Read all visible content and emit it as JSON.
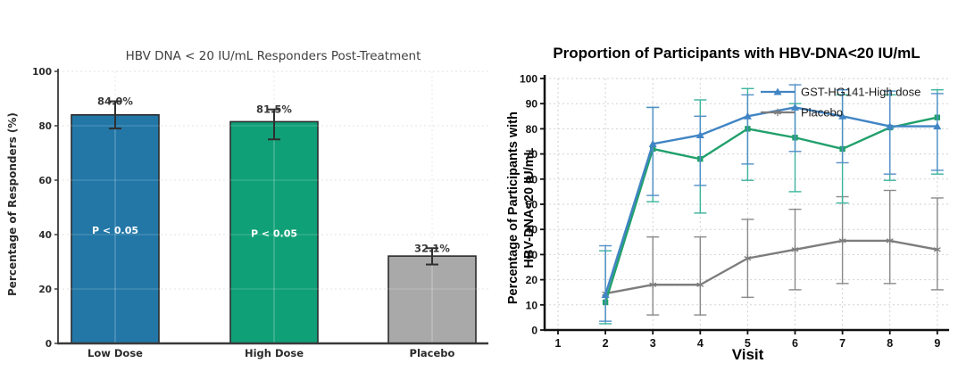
{
  "figure": {
    "background": "#ffffff"
  },
  "chart_data": [
    {
      "type": "bar",
      "title": "HBV DNA < 20 IU/mL Responders Post-Treatment",
      "ylabel": "Percentage of Responders (%)",
      "xlabel": "",
      "categories": [
        "Low Dose",
        "High Dose",
        "Placebo"
      ],
      "values": [
        84.0,
        81.5,
        32.1
      ],
      "value_labels": [
        "84.0%",
        "81.5%",
        "32.1%"
      ],
      "bar_annotations": [
        "P < 0.05",
        "P < 0.05",
        ""
      ],
      "error_low": [
        79,
        75,
        29
      ],
      "error_high": [
        89,
        86,
        35
      ],
      "bar_colors": [
        "#2277a7",
        "#10a077",
        "#a9a9a9"
      ],
      "bar_edge_color": "#2b2b2b",
      "error_color": "#2f2f2f",
      "ylim": [
        0,
        100
      ],
      "yticks": [
        0,
        20,
        40,
        60,
        80,
        100
      ],
      "grid": true,
      "grid_color": "#dcdcdc",
      "title_color": "#3f3f3f",
      "annotation_color": "#ffffff"
    },
    {
      "type": "line",
      "title": "Proportion of Participants with HBV-DNA<20 IU/mL",
      "xlabel": "Visit",
      "ylabel": "Percentage of Participants with HBV-DNA<20 IU/mL",
      "ylabel_lines": [
        "Percentage of Participants with",
        "HBV-DNA<20 IU/mL"
      ],
      "x": [
        2,
        3,
        4,
        5,
        6,
        7,
        8,
        9
      ],
      "xticks": [
        1,
        2,
        3,
        4,
        5,
        6,
        7,
        8,
        9
      ],
      "xlim": [
        1,
        9.25
      ],
      "ylim": [
        0,
        100
      ],
      "yticks": [
        0,
        10,
        20,
        30,
        40,
        50,
        60,
        70,
        80,
        90,
        100
      ],
      "grid": true,
      "grid_color": "#d2d2d2",
      "legend_position": "top-right",
      "legend_entries": [
        "GST-HG141-High dose",
        "Placebo"
      ],
      "series": [
        {
          "name": "Placebo",
          "in_legend": true,
          "color": "#7d7d7d",
          "error_color": "#8a8a8a",
          "marker": "star",
          "values": [
            14.5,
            18,
            18,
            28.5,
            32,
            35.5,
            35.5,
            32
          ],
          "error_low": [
            null,
            6,
            6,
            13,
            16,
            18.5,
            18.5,
            16
          ],
          "error_high": [
            null,
            37,
            37,
            44,
            48,
            53,
            55.5,
            52.5
          ]
        },
        {
          "name": "",
          "in_legend": false,
          "color": "#21a06c",
          "error_color": "#3cb49c",
          "marker": "square",
          "values": [
            11,
            72,
            68,
            80,
            76.5,
            72,
            80.5,
            84.5
          ],
          "error_low": [
            2.5,
            51,
            46.5,
            59.5,
            55,
            50.5,
            59.5,
            62
          ],
          "error_high": [
            31.5,
            88.5,
            91.5,
            96,
            90,
            93.5,
            93.5,
            95.5
          ]
        },
        {
          "name": "GST-HG141-High dose",
          "in_legend": true,
          "color": "#4185c4",
          "error_color": "#5390c8",
          "marker": "triangle",
          "values": [
            14,
            74,
            77.5,
            85,
            88.5,
            85,
            81,
            81
          ],
          "error_low": [
            3.5,
            53.5,
            57.5,
            66,
            71,
            66.5,
            62,
            63.5
          ],
          "error_high": [
            33.5,
            88.5,
            85,
            93.5,
            97.5,
            95.5,
            95,
            94
          ]
        }
      ]
    }
  ]
}
